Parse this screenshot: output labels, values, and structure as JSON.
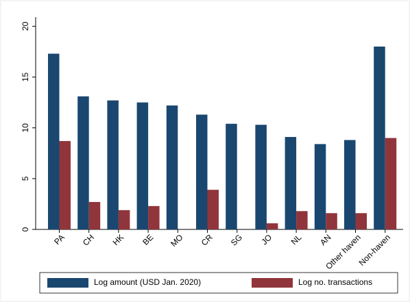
{
  "chart_data": {
    "type": "bar",
    "categories": [
      "PA",
      "CH",
      "HK",
      "BE",
      "MO",
      "CR",
      "SG",
      "JO",
      "NL",
      "AN",
      "Other haven",
      "Non-haven"
    ],
    "series": [
      {
        "name": "Log amount (USD Jan. 2020)",
        "color": "#1a476f",
        "values": [
          17.3,
          13.1,
          12.7,
          12.5,
          12.2,
          11.3,
          10.4,
          10.3,
          9.1,
          8.4,
          8.8,
          18.0
        ]
      },
      {
        "name": "Log no. transactions",
        "color": "#90353b",
        "values": [
          8.7,
          2.7,
          1.9,
          2.3,
          null,
          3.9,
          null,
          0.6,
          1.8,
          1.6,
          1.6,
          9.0
        ]
      }
    ],
    "ylim": [
      0,
      20.9
    ],
    "yticks": [
      0,
      5,
      10,
      15,
      20
    ],
    "grid": false,
    "legend": "bottom"
  }
}
